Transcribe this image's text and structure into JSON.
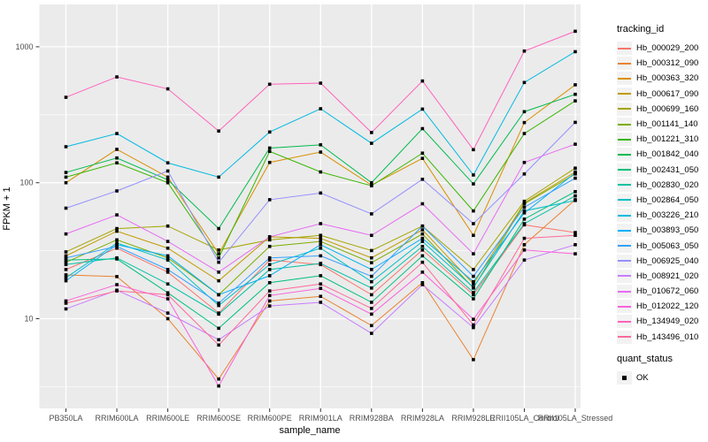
{
  "figure": {
    "background": "#FFFFFF",
    "panel_background": "#EBEBEB",
    "gridline_color": "#FFFFFF",
    "tick_color": "#333333",
    "tick_label_color": "#4D4D4D",
    "text_color": "#000000",
    "point_color": "#000000"
  },
  "legend": {
    "tracking_title": "tracking_id",
    "quant_title": "quant_status",
    "quant_items": [
      {
        "label": "OK",
        "marker": "black-square"
      }
    ]
  },
  "chart_data": {
    "type": "line",
    "title": "",
    "xlabel": "sample_name",
    "ylabel": "FPKM + 1",
    "y_scale": "log10",
    "y_ticks": [
      10,
      100,
      1000
    ],
    "y_tick_labels": [
      "10",
      "100",
      "1000"
    ],
    "y_minor_ticks": [
      3.162,
      31.62,
      316.2
    ],
    "ylim": [
      2.2,
      1900
    ],
    "grid": "on",
    "legend_position": "right",
    "point_shape": "filled-black-square",
    "categories": [
      "PB350LA",
      "RRIM600LA",
      "RRIM600LE",
      "RRIM600SE",
      "RRIM600PE",
      "RRIM901LA",
      "RRIM928BA",
      "RRIM928LA",
      "RRIM928LE",
      "RRII105LA_Control",
      "RRII105LA_Stressed"
    ],
    "series": [
      {
        "name": "Hb_000029_200",
        "color": "#F8766D",
        "values": [
          23,
          33,
          22,
          11,
          27,
          25,
          15,
          32,
          15,
          49,
          43
        ]
      },
      {
        "name": "Hb_000312_090",
        "color": "#EA8331",
        "values": [
          21,
          20.4,
          10,
          3.6,
          13.5,
          14.6,
          8.9,
          18.4,
          5,
          35,
          75
        ]
      },
      {
        "name": "Hb_000363_320",
        "color": "#D89000",
        "values": [
          100,
          176,
          110,
          30,
          141,
          168,
          96,
          151,
          41,
          277,
          525
        ]
      },
      {
        "name": "Hb_000617_090",
        "color": "#C09B00",
        "values": [
          29,
          44,
          33,
          19,
          40,
          39,
          28,
          45,
          18,
          71,
          120
        ]
      },
      {
        "name": "Hb_000699_160",
        "color": "#A3A500",
        "values": [
          31,
          46,
          48,
          32,
          38,
          41,
          31.7,
          48,
          23,
          73,
          128
        ]
      },
      {
        "name": "Hb_001141_140",
        "color": "#7CAE00",
        "values": [
          26,
          38,
          28,
          15,
          34,
          37,
          25.8,
          42,
          16.8,
          70,
          116
        ]
      },
      {
        "name": "Hb_001221_310",
        "color": "#39B600",
        "values": [
          110,
          140,
          100,
          28,
          170,
          120,
          95,
          165,
          62,
          230,
          400
        ]
      },
      {
        "name": "Hb_001842_040",
        "color": "#00BB4E",
        "values": [
          119,
          152,
          105,
          46,
          180,
          190,
          100,
          250,
          98,
          333,
          447
        ]
      },
      {
        "name": "Hb_002431_050",
        "color": "#00BF7D",
        "values": [
          27,
          27.5,
          15.5,
          8.5,
          18.4,
          20.7,
          13.2,
          29,
          14,
          54,
          86
        ]
      },
      {
        "name": "Hb_002830_020",
        "color": "#00C1A3",
        "values": [
          25,
          28,
          18,
          10.8,
          23,
          25.5,
          16.8,
          34,
          15.6,
          50,
          80
        ]
      },
      {
        "name": "Hb_002864_050",
        "color": "#00BFC4",
        "values": [
          20,
          36,
          27,
          12.5,
          25,
          33,
          18.7,
          37,
          17,
          62,
          74
        ]
      },
      {
        "name": "Hb_003226_210",
        "color": "#00BAE0",
        "values": [
          184,
          230,
          140,
          110,
          236,
          350,
          195,
          348,
          114,
          546,
          920
        ]
      },
      {
        "name": "Hb_003893_050",
        "color": "#00B0F6",
        "values": [
          19,
          35,
          29,
          15,
          20.7,
          35,
          23,
          39,
          18.7,
          60,
          118
        ]
      },
      {
        "name": "Hb_005063_050",
        "color": "#35A2FF",
        "values": [
          28,
          34,
          23,
          13,
          28,
          29,
          20.5,
          48,
          20.5,
          66,
          108
        ]
      },
      {
        "name": "Hb_006925_040",
        "color": "#9590FF",
        "values": [
          65,
          87,
          122,
          26,
          75,
          84,
          59,
          106,
          50,
          116,
          278
        ]
      },
      {
        "name": "Hb_008921_020",
        "color": "#C77CFF",
        "values": [
          11.8,
          16.2,
          11,
          7,
          12.4,
          13.2,
          7.8,
          17.8,
          8.6,
          27,
          35
        ]
      },
      {
        "name": "Hb_010672_060",
        "color": "#E76BF3",
        "values": [
          42,
          58,
          37,
          22,
          40,
          50,
          41,
          70,
          30,
          141,
          192
        ]
      },
      {
        "name": "Hb_012022_120",
        "color": "#FA62DB",
        "values": [
          13.5,
          17.8,
          14,
          3.2,
          14.8,
          16.7,
          10.8,
          22,
          9.9,
          32,
          30
        ]
      },
      {
        "name": "Hb_134949_020",
        "color": "#FF62BC",
        "values": [
          425,
          600,
          490,
          240,
          530,
          540,
          234,
          560,
          175,
          930,
          1300
        ]
      },
      {
        "name": "Hb_143496_010",
        "color": "#FF6A98",
        "values": [
          13,
          16,
          15,
          6.4,
          16,
          18,
          11.9,
          26,
          9,
          39,
          41
        ]
      }
    ]
  }
}
